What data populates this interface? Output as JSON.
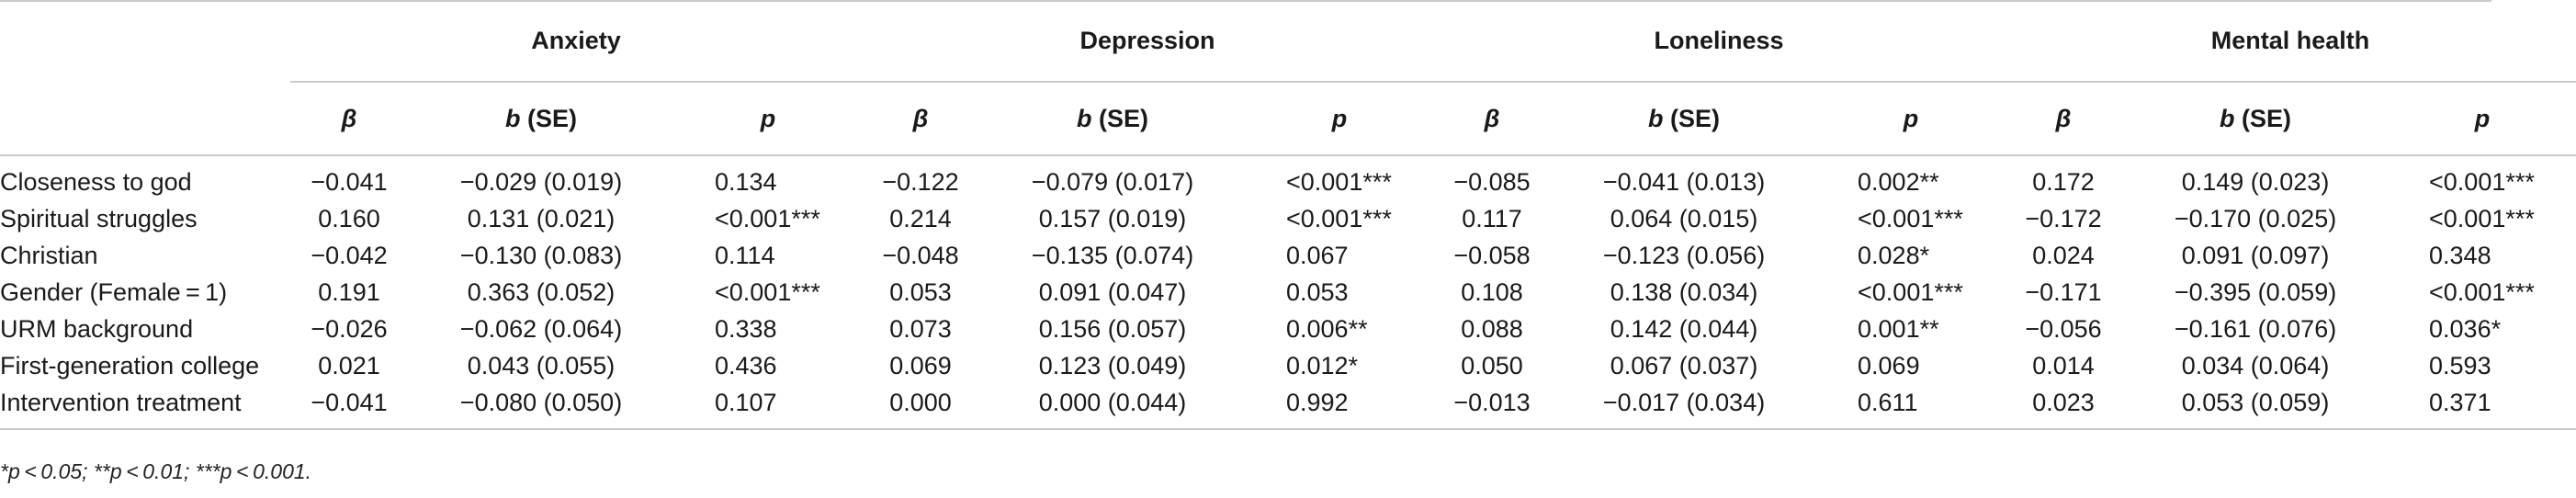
{
  "table": {
    "groups": [
      "Anxiety",
      "Depression",
      "Loneliness",
      "Mental health"
    ],
    "subheaders": {
      "beta": "β",
      "b_letter": "b",
      "b_rest": " (SE)",
      "p": "p"
    },
    "rows": [
      {
        "label": "Closeness to god",
        "cells": [
          "−0.041",
          "−0.029 (0.019)",
          "0.134",
          "−0.122",
          "−0.079 (0.017)",
          "<0.001***",
          "−0.085",
          "−0.041 (0.013)",
          "0.002**",
          "0.172",
          "0.149 (0.023)",
          "<0.001***"
        ]
      },
      {
        "label": "Spiritual struggles",
        "cells": [
          "0.160",
          "0.131 (0.021)",
          "<0.001***",
          "0.214",
          "0.157 (0.019)",
          "<0.001***",
          "0.117",
          "0.064 (0.015)",
          "<0.001***",
          "−0.172",
          "−0.170 (0.025)",
          "<0.001***"
        ]
      },
      {
        "label": "Christian",
        "cells": [
          "−0.042",
          "−0.130 (0.083)",
          "0.114",
          "−0.048",
          "−0.135 (0.074)",
          "0.067",
          "−0.058",
          "−0.123 (0.056)",
          "0.028*",
          "0.024",
          "0.091 (0.097)",
          "0.348"
        ]
      },
      {
        "label": "Gender (Female = 1)",
        "cells": [
          "0.191",
          "0.363 (0.052)",
          "<0.001***",
          "0.053",
          "0.091 (0.047)",
          "0.053",
          "0.108",
          "0.138 (0.034)",
          "<0.001***",
          "−0.171",
          "−0.395 (0.059)",
          "<0.001***"
        ]
      },
      {
        "label": "URM background",
        "cells": [
          "−0.026",
          "−0.062 (0.064)",
          "0.338",
          "0.073",
          "0.156 (0.057)",
          "0.006**",
          "0.088",
          "0.142 (0.044)",
          "0.001**",
          "−0.056",
          "−0.161 (0.076)",
          "0.036*"
        ]
      },
      {
        "label": "First-generation college",
        "cells": [
          "0.021",
          "0.043 (0.055)",
          "0.436",
          "0.069",
          "0.123 (0.049)",
          "0.012*",
          "0.050",
          "0.067 (0.037)",
          "0.069",
          "0.014",
          "0.034 (0.064)",
          "0.593"
        ]
      },
      {
        "label": "Intervention treatment",
        "cells": [
          "−0.041",
          "−0.080 (0.050)",
          "0.107",
          "0.000",
          "0.000 (0.044)",
          "0.992",
          "−0.013",
          "−0.017 (0.034)",
          "0.611",
          "0.023",
          "0.053 (0.059)",
          "0.371"
        ]
      }
    ]
  },
  "footnote": "*p < 0.05; **p < 0.01; ***p < 0.001."
}
